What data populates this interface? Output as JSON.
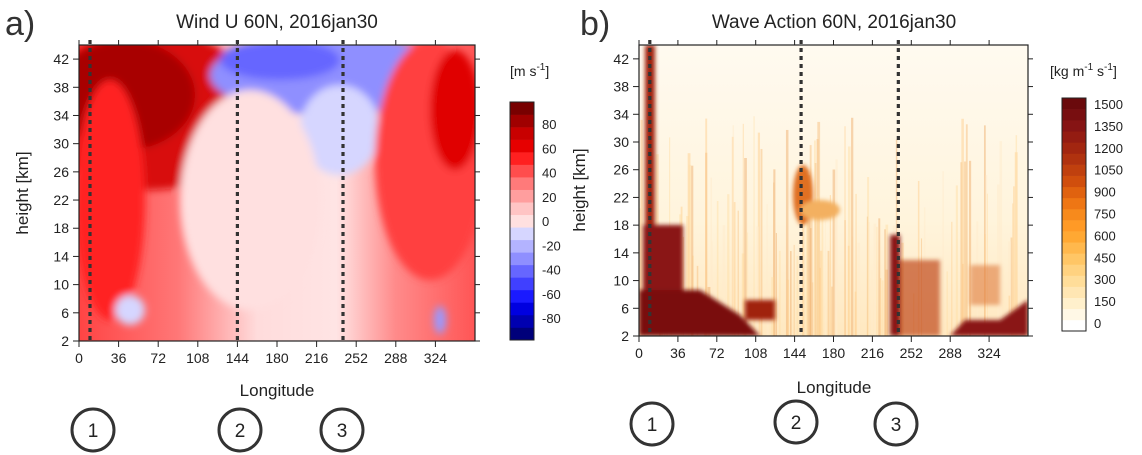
{
  "chart_data": [
    {
      "type": "heatmap",
      "panel_label": "a)",
      "title": "Wind U 60N, 2016jan30",
      "xlabel": "Longitude",
      "ylabel": "height [km]",
      "xlim": [
        0,
        360
      ],
      "ylim": [
        2,
        44
      ],
      "x_ticks": [
        0,
        36,
        72,
        108,
        144,
        180,
        216,
        252,
        288,
        324
      ],
      "y_ticks": [
        2,
        6,
        10,
        14,
        18,
        22,
        26,
        30,
        34,
        38,
        42
      ],
      "dotted_lines_x": [
        10,
        144,
        240
      ],
      "colorbar": {
        "unit_base": "[m s",
        "unit_sup": "-1",
        "unit_end": "]",
        "tick_labels": [
          "80",
          "60",
          "40",
          "20",
          "0",
          "-20",
          "-40",
          "-60",
          "-80"
        ],
        "levels": [
          -90,
          -80,
          -70,
          -60,
          -50,
          -40,
          -30,
          -20,
          -10,
          0,
          10,
          20,
          30,
          40,
          50,
          60,
          70,
          80,
          90,
          100
        ],
        "colors": [
          "#00007a",
          "#0000b0",
          "#0000e0",
          "#1a1aff",
          "#4040ff",
          "#6666ff",
          "#8f8fff",
          "#b3b3ff",
          "#d6d6ff",
          "#ffe0e0",
          "#ffc4c4",
          "#ff9e9e",
          "#ff7a7a",
          "#ff4d4d",
          "#ff2020",
          "#e60000",
          "#c80000",
          "#a00000",
          "#780000"
        ]
      },
      "features": [
        {
          "desc": "strong westerly jet",
          "lon_range": [
            0,
            100
          ],
          "height_range": [
            22,
            44
          ],
          "value_range": [
            60,
            90
          ]
        },
        {
          "desc": "easterly region",
          "lon_range": [
            140,
            250
          ],
          "height_range": [
            30,
            44
          ],
          "value_range": [
            -30,
            -10
          ]
        },
        {
          "desc": "westerly",
          "lon_range": [
            280,
            360
          ],
          "height_range": [
            10,
            44
          ],
          "value_range": [
            30,
            60
          ]
        }
      ]
    },
    {
      "type": "heatmap",
      "panel_label": "b)",
      "title": "Wave Action 60N, 2016jan30",
      "xlabel": "Longitude",
      "ylabel": "height [km]",
      "xlim": [
        0,
        360
      ],
      "ylim": [
        2,
        44
      ],
      "x_ticks": [
        0,
        36,
        72,
        108,
        144,
        180,
        216,
        252,
        288,
        324
      ],
      "y_ticks": [
        2,
        6,
        10,
        14,
        18,
        22,
        26,
        30,
        34,
        38,
        42
      ],
      "dotted_lines_x": [
        10,
        150,
        240
      ],
      "colorbar": {
        "unit_base": "[kg m",
        "unit_sup": "-1",
        "unit_mid": " s",
        "unit_sup2": "-1",
        "unit_end": "]",
        "tick_labels": [
          "1500",
          "1350",
          "1200",
          "1050",
          "900",
          "750",
          "600",
          "450",
          "300",
          "150",
          "0"
        ],
        "levels": [
          0,
          75,
          150,
          225,
          300,
          375,
          450,
          525,
          600,
          675,
          750,
          825,
          900,
          975,
          1050,
          1125,
          1200,
          1275,
          1350,
          1425,
          1500,
          1575
        ],
        "colors": [
          "#ffffff",
          "#fff8e6",
          "#fff0cc",
          "#ffe6b3",
          "#ffdd99",
          "#ffd280",
          "#ffc666",
          "#ffb84d",
          "#ffa833",
          "#ff9a26",
          "#f78a1c",
          "#ee7614",
          "#e0620f",
          "#d04e0d",
          "#c0400e",
          "#b0320f",
          "#a22610",
          "#941c12",
          "#861414",
          "#780e10",
          "#6a0a0c"
        ]
      },
      "features": [
        {
          "desc": "large wave action",
          "lon_range": [
            0,
            36
          ],
          "height_range": [
            2,
            44
          ],
          "value_range": [
            600,
            1500
          ]
        },
        {
          "desc": "large wave action",
          "lon_range": [
            230,
            250
          ],
          "height_range": [
            2,
            20
          ],
          "value_range": [
            600,
            1500
          ]
        },
        {
          "desc": "large wave action",
          "lon_range": [
            300,
            360
          ],
          "height_range": [
            2,
            6
          ],
          "value_range": [
            600,
            1500
          ]
        }
      ]
    }
  ],
  "markers": [
    {
      "label": "1"
    },
    {
      "label": "2"
    },
    {
      "label": "3"
    },
    {
      "label": "1"
    },
    {
      "label": "2"
    },
    {
      "label": "3"
    }
  ]
}
